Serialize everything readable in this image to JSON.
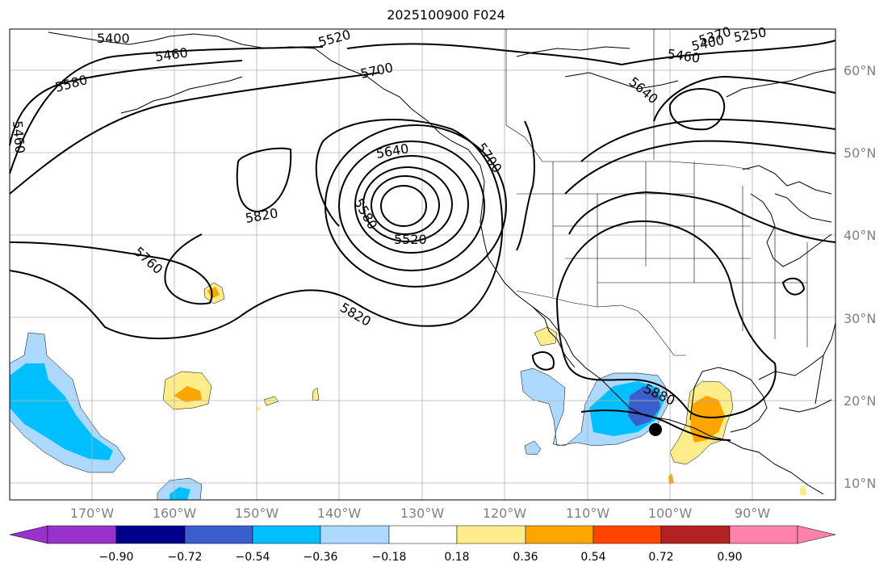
{
  "title": "2025100900 F024",
  "lat_labels": [
    "60°N",
    "50°N",
    "40°N",
    "30°N",
    "20°N",
    "10°N"
  ],
  "lon_labels": [
    "170°W",
    "160°W",
    "150°W",
    "140°W",
    "130°W",
    "120°W",
    "110°W",
    "100°W",
    "90°W"
  ],
  "colorbar": {
    "tick_labels": [
      "−0.90",
      "−0.72",
      "−0.54",
      "−0.36",
      "−0.18",
      "0.18",
      "0.36",
      "0.54",
      "0.72",
      "0.90"
    ],
    "colors": [
      "#9932cc",
      "#00008b",
      "#3a5fcd",
      "#00bfff",
      "#add8ff",
      "#ffffff",
      "#ffec8b",
      "#ffa500",
      "#ff4500",
      "#b22222",
      "#ff82ab"
    ]
  },
  "contour_labels": [
    "5400",
    "5460",
    "5520",
    "5580",
    "5460",
    "5700",
    "5640",
    "5640",
    "5700",
    "5580",
    "5520",
    "5820",
    "5760",
    "5820",
    "5880",
    "5460",
    "5400",
    "5370",
    "5250"
  ],
  "marker": "storm-center-dot",
  "map": {
    "gridlines": true,
    "features": [
      "coastlines",
      "country-borders",
      "state-borders",
      "geopotential-height-contours",
      "shaded-anomaly-field"
    ]
  }
}
